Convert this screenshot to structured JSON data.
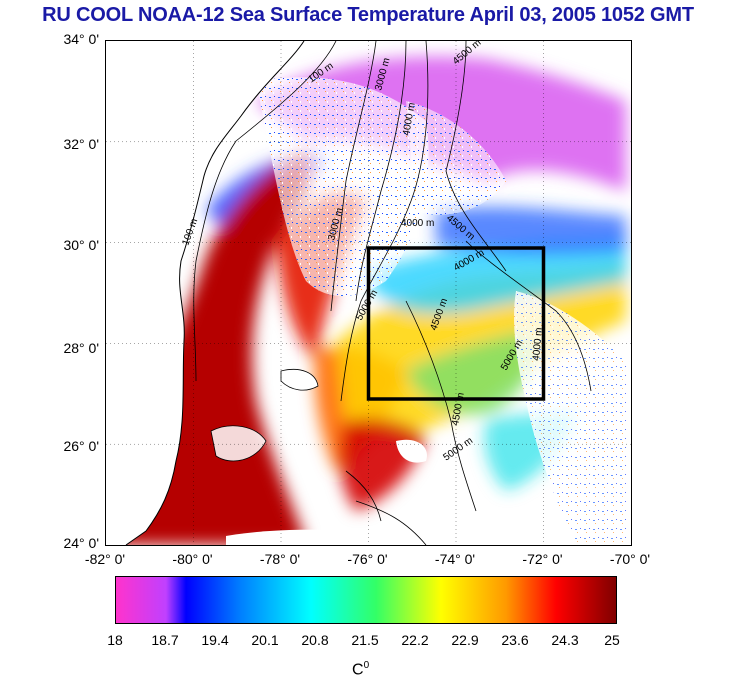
{
  "title": "RU COOL  NOAA-12 Sea Surface Temperature April 03, 2005 1052 GMT",
  "lat_labels": [
    "34° 0'",
    "32° 0'",
    "30° 0'",
    "28° 0'",
    "26° 0'",
    "24° 0'"
  ],
  "lon_labels": [
    "-82° 0'",
    "-80° 0'",
    "-78° 0'",
    "-76° 0'",
    "-74° 0'",
    "-72° 0'",
    "-70° 0'"
  ],
  "contour_labels": [
    "100 m",
    "100 m",
    "3000 m",
    "4500 m",
    "4000 m",
    "3000 m",
    "4000 m",
    "4500 m",
    "4000 m",
    "5000 m",
    "4500 m",
    "5000 m",
    "4500 m",
    "4000 m",
    "5000 m"
  ],
  "colorbar": {
    "ticks": [
      "18",
      "18.7",
      "19.4",
      "20.1",
      "20.8",
      "21.5",
      "22.2",
      "22.9",
      "23.6",
      "24.3",
      "25"
    ],
    "unit": "C",
    "unit_sup": "0",
    "min": 18,
    "max": 25
  },
  "map_extent": {
    "lon": [
      -82,
      -70
    ],
    "lat": [
      24,
      34
    ]
  },
  "study_box": {
    "lon": [
      -76,
      -72
    ],
    "lat": [
      27,
      30
    ]
  },
  "colors": {
    "title": "#1a1aa6",
    "box": "#000000"
  }
}
